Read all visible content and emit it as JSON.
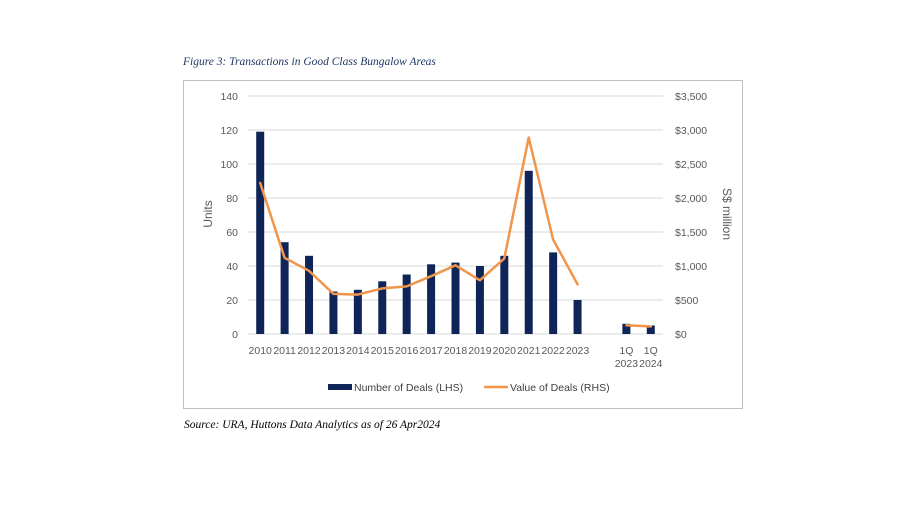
{
  "figure_title": "Figure 3: Transactions in Good Class Bungalow Areas",
  "source_note": "Source: URA, Huttons Data Analytics as of 26 Apr2024",
  "colors": {
    "bar": "#0f2557",
    "line": "#f0954a",
    "grid": "#d9d9d9",
    "frame": "#bfbfbf"
  },
  "chart_data": {
    "type": "bar+line",
    "title": "Transactions in Good Class Bungalow Areas",
    "categories": [
      "2010",
      "2011",
      "2012",
      "2013",
      "2014",
      "2015",
      "2016",
      "2017",
      "2018",
      "2019",
      "2020",
      "2021",
      "2022",
      "2023",
      "",
      "1Q 2023",
      "1Q 2024"
    ],
    "category_lines": [
      [
        "2010"
      ],
      [
        "2011"
      ],
      [
        "2012"
      ],
      [
        "2013"
      ],
      [
        "2014"
      ],
      [
        "2015"
      ],
      [
        "2016"
      ],
      [
        "2017"
      ],
      [
        "2018"
      ],
      [
        "2019"
      ],
      [
        "2020"
      ],
      [
        "2021"
      ],
      [
        "2022"
      ],
      [
        "2023"
      ],
      [],
      [
        "1Q",
        "2023"
      ],
      [
        "1Q",
        "2024"
      ]
    ],
    "series": [
      {
        "name": "Number of Deals (LHS)",
        "type": "bar",
        "axis": "left",
        "values": [
          119,
          54,
          46,
          25,
          26,
          31,
          35,
          41,
          42,
          40,
          46,
          96,
          48,
          20,
          null,
          6,
          5
        ]
      },
      {
        "name": "Value of Deals (RHS)",
        "type": "line",
        "axis": "right",
        "segments": [
          {
            "start_index": 0,
            "values": [
              2220,
              1120,
              930,
              590,
              580,
              670,
              700,
              850,
              1010,
              790,
              1110,
              2890,
              1390,
              730
            ]
          },
          {
            "start_index": 15,
            "values": [
              130,
              110
            ]
          }
        ]
      }
    ],
    "ylabel_left": "Units",
    "ylabel_right": "S$ million",
    "ylim_left": [
      0,
      140
    ],
    "ylim_right": [
      0,
      3500
    ],
    "yticks_left": [
      "0",
      "20",
      "40",
      "60",
      "80",
      "100",
      "120",
      "140"
    ],
    "yticks_right": [
      "$0",
      "$500",
      "$1,000",
      "$1,500",
      "$2,000",
      "$2,500",
      "$3,000",
      "$3,500"
    ],
    "grid": true,
    "legend_position": "bottom"
  }
}
